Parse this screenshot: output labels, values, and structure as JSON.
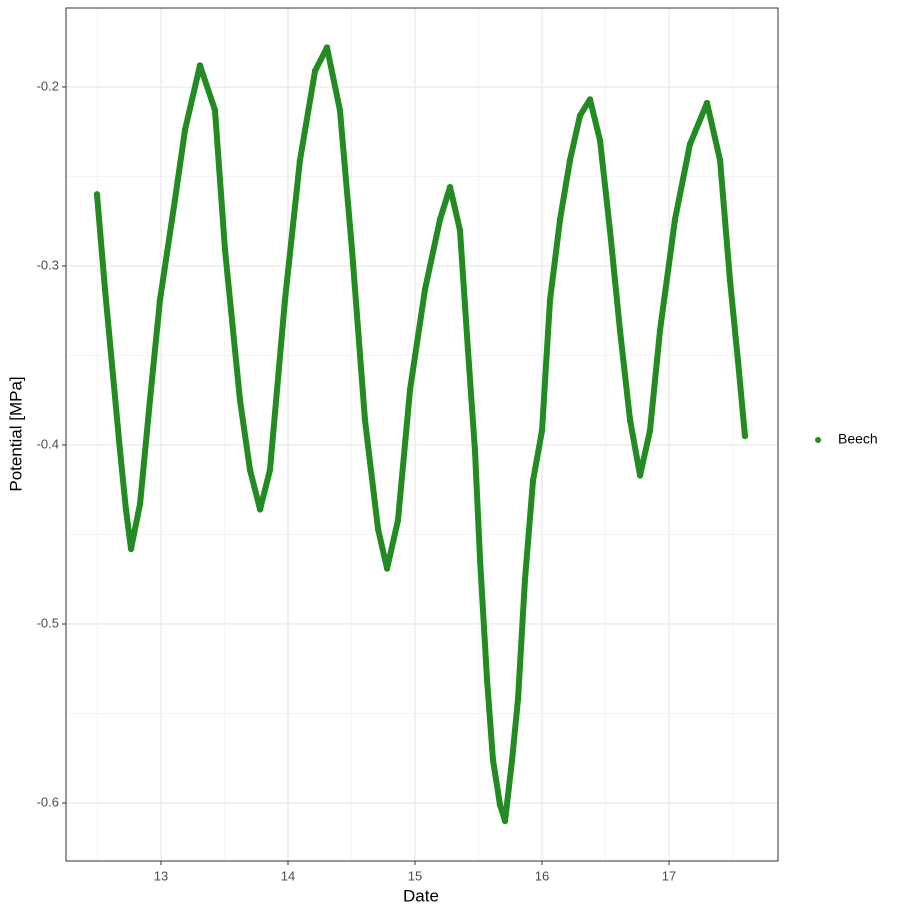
{
  "chart_data": {
    "type": "scatter",
    "x_label": "Date",
    "y_label": "Potential [MPa]",
    "x": [
      12.496,
      12.559,
      12.677,
      12.724,
      12.764,
      12.835,
      12.913,
      12.992,
      13.11,
      13.189,
      13.307,
      13.425,
      13.504,
      13.622,
      13.701,
      13.78,
      13.858,
      13.976,
      14.094,
      14.213,
      14.307,
      14.409,
      14.504,
      14.606,
      14.709,
      14.78,
      14.866,
      14.961,
      15.079,
      15.197,
      15.276,
      15.354,
      15.417,
      15.472,
      15.512,
      15.567,
      15.614,
      15.669,
      15.709,
      15.764,
      15.811,
      15.866,
      15.929,
      16.0,
      16.063,
      16.142,
      16.22,
      16.299,
      16.378,
      16.457,
      16.535,
      16.614,
      16.693,
      16.772,
      16.85,
      16.929,
      17.047,
      17.165,
      17.299,
      17.402,
      17.48,
      17.543,
      17.598
    ],
    "series": [
      {
        "name": "Beech",
        "color": "#228B22",
        "values": [
          -0.26,
          -0.313,
          -0.403,
          -0.436,
          -0.458,
          -0.433,
          -0.375,
          -0.319,
          -0.263,
          -0.224,
          -0.188,
          -0.213,
          -0.291,
          -0.375,
          -0.414,
          -0.436,
          -0.414,
          -0.319,
          -0.241,
          -0.191,
          -0.178,
          -0.213,
          -0.291,
          -0.386,
          -0.447,
          -0.469,
          -0.442,
          -0.369,
          -0.313,
          -0.274,
          -0.256,
          -0.28,
          -0.347,
          -0.403,
          -0.464,
          -0.531,
          -0.576,
          -0.601,
          -0.61,
          -0.576,
          -0.542,
          -0.475,
          -0.42,
          -0.392,
          -0.319,
          -0.274,
          -0.241,
          -0.216,
          -0.207,
          -0.23,
          -0.28,
          -0.336,
          -0.386,
          -0.417,
          -0.392,
          -0.336,
          -0.274,
          -0.232,
          -0.209,
          -0.241,
          -0.308,
          -0.353,
          -0.395
        ]
      }
    ],
    "xlim": [
      12.252,
      17.858
    ],
    "ylim": [
      -0.6324,
      -0.1559
    ],
    "xticks": [
      13,
      14,
      15,
      16,
      17
    ],
    "yticks": [
      -0.6,
      -0.5,
      -0.4,
      -0.3,
      -0.2
    ],
    "grid": true,
    "legend": "right"
  }
}
